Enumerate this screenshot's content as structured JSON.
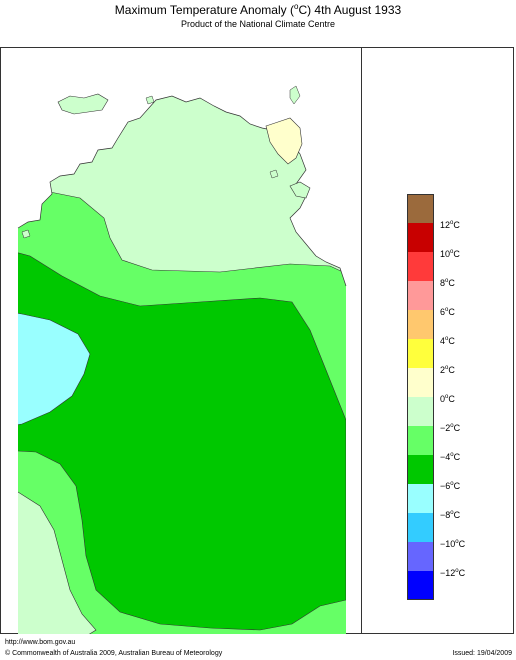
{
  "title": {
    "prefix": "Maximum Temperature Anomaly (",
    "unit_sup": "o",
    "suffix": "C)  4th August 1933"
  },
  "subtitle": "Product of the National Climate Centre",
  "legend": {
    "colors": [
      "#9b6a3c",
      "#c80000",
      "#ff3a3a",
      "#ff9999",
      "#ffc86e",
      "#ffff3c",
      "#ffffcc",
      "#ccffcc",
      "#66ff66",
      "#00c800",
      "#99ffff",
      "#33ccff",
      "#6666ff",
      "#0000ff"
    ],
    "labels": [
      "12",
      "10",
      "8",
      "6",
      "4",
      "2",
      "0",
      "−2",
      "−4",
      "−6",
      "−8",
      "−10",
      "−12"
    ],
    "unit": "C"
  },
  "footer": {
    "url": "http://www.bom.gov.au",
    "copyright": "© Commonwealth of Australia 2009, Australian Bureau of Meteorology",
    "issued": "Issued: 19/04/2009"
  },
  "map_regions": [
    {
      "name": "0 to -2",
      "color": "#ccffcc"
    },
    {
      "name": "-2 to -4",
      "color": "#66ff66"
    },
    {
      "name": "-4 to -6",
      "color": "#00c800"
    },
    {
      "name": "-6 to -8",
      "color": "#99ffff"
    },
    {
      "name": "0 to 2",
      "color": "#ffffcc"
    }
  ]
}
